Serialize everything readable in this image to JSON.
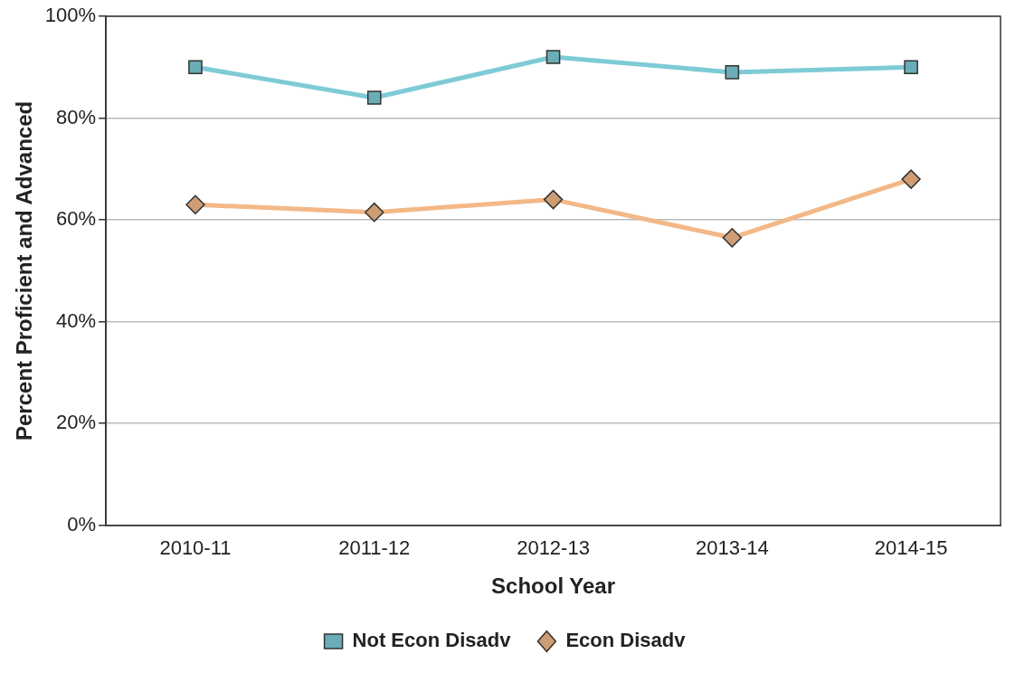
{
  "chart_data": {
    "type": "line",
    "xlabel": "School Year",
    "ylabel": "Percent Proficient and Advanced",
    "categories": [
      "2010-11",
      "2011-12",
      "2012-13",
      "2013-14",
      "2014-15"
    ],
    "series": [
      {
        "name": "Not Econ Disadv",
        "color": "#7ecbd6",
        "marker": "square",
        "values": [
          90,
          84,
          92,
          89,
          90
        ]
      },
      {
        "name": "Econ Disadv",
        "color": "#f3b887",
        "marker": "diamond",
        "values": [
          63,
          61.5,
          64,
          56.5,
          68
        ]
      }
    ],
    "ylim": [
      0,
      100
    ],
    "yticks": [
      {
        "value": 0,
        "label": "0%"
      },
      {
        "value": 20,
        "label": "20%"
      },
      {
        "value": 40,
        "label": "40%"
      },
      {
        "value": 60,
        "label": "60%"
      },
      {
        "value": 80,
        "label": "80%"
      },
      {
        "value": 100,
        "label": "100%"
      }
    ],
    "grid": "y",
    "legend": "bottom",
    "line_style": "solid"
  }
}
